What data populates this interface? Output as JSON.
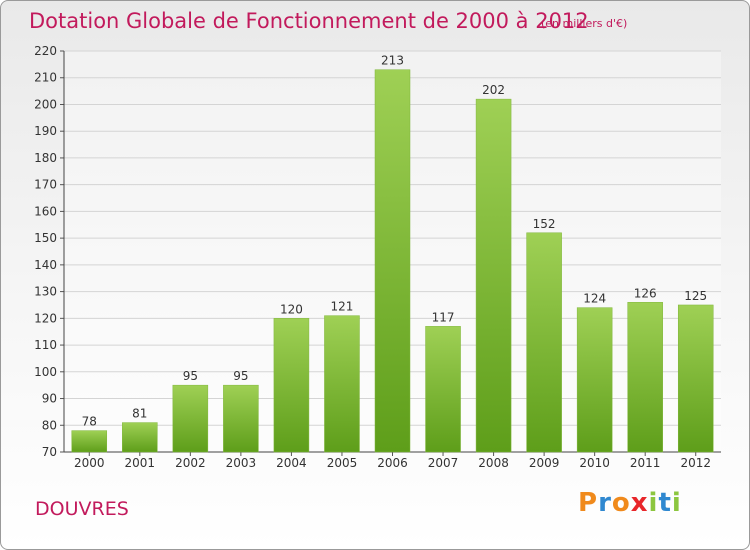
{
  "header": {
    "title": "Dotation Globale de Fonctionnement de 2000 à 2012",
    "subtitle": "(en milliers d'€)"
  },
  "footer": {
    "city": "DOUVRES",
    "logo": "Proxiti"
  },
  "colors": {
    "title": "#c21a5c",
    "bar_top": "#9fd055",
    "bar_bottom": "#5e9e1a",
    "logo_letters": [
      "#f08a1c",
      "#2f88d0",
      "#f08a1c",
      "#e8262a",
      "#8cc63f",
      "#2f88d0",
      "#8cc63f"
    ]
  },
  "chart_data": {
    "type": "bar",
    "title": "Dotation Globale de Fonctionnement de 2000 à 2012",
    "subtitle": "(en milliers d'€)",
    "categories": [
      "2000",
      "2001",
      "2002",
      "2003",
      "2004",
      "2005",
      "2006",
      "2007",
      "2008",
      "2009",
      "2010",
      "2011",
      "2012"
    ],
    "values": [
      78,
      81,
      95,
      95,
      120,
      121,
      213,
      117,
      202,
      152,
      124,
      126,
      125
    ],
    "ylim": [
      70,
      220
    ],
    "yticks": [
      70,
      80,
      90,
      100,
      110,
      120,
      130,
      140,
      150,
      160,
      170,
      180,
      190,
      200,
      210,
      220
    ],
    "grid": true
  }
}
